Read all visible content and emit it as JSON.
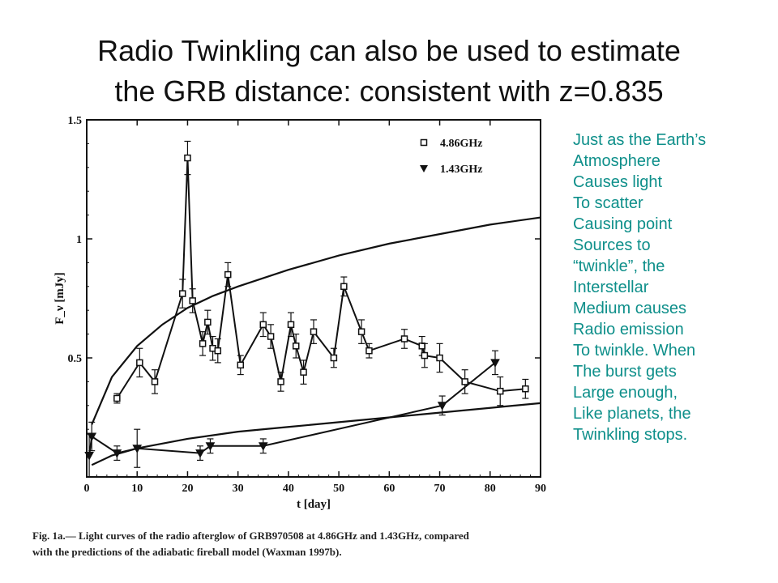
{
  "slide": {
    "title_line1": "Radio Twinkling can also be used to estimate",
    "title_line2": "the GRB distance:  consistent with z=0.835",
    "sidebar_lines": [
      "Just as the Earth’s",
      "Atmosphere",
      "Causes light",
      "To scatter",
      "Causing point",
      "Sources to",
      "“twinkle”, the",
      "Interstellar",
      "Medium causes",
      "Radio emission",
      "To twinkle.  When",
      "The burst gets",
      "Large enough,",
      "Like planets, the",
      "Twinkling stops."
    ],
    "caption_line1": "Fig. 1a.— Light curves of the radio afterglow of GRB970508 at 4.86GHz and 1.43GHz, compared",
    "caption_line2": "with the predictions of the adiabatic fireball model (Waxman 1997b).",
    "colors": {
      "title": "#111111",
      "sidebar": "#0e8f8a",
      "plot": "#111111"
    }
  },
  "chart_data": {
    "type": "line",
    "xlabel": "t [day]",
    "ylabel": "F_ν [mJy]",
    "xlim": [
      0,
      90
    ],
    "ylim": [
      0,
      1.5
    ],
    "x_ticks": [
      0,
      10,
      20,
      30,
      40,
      50,
      60,
      70,
      80,
      90
    ],
    "y_ticks": [
      0.5,
      1,
      1.5
    ],
    "y_tick_labels": [
      "0.5",
      "1",
      "1.5"
    ],
    "legend_position": "top-right",
    "series": [
      {
        "name": "4.86GHz",
        "marker": "square",
        "x": [
          6,
          10.5,
          13.5,
          19,
          20,
          21,
          23,
          24,
          25,
          26,
          28,
          30.5,
          35,
          36.5,
          38.5,
          40.5,
          41.5,
          43,
          45,
          49,
          51,
          54.5,
          56,
          63,
          66.5,
          67,
          70,
          75,
          82,
          87
        ],
        "y": [
          0.33,
          0.48,
          0.4,
          0.77,
          1.34,
          0.74,
          0.56,
          0.65,
          0.54,
          0.53,
          0.85,
          0.47,
          0.64,
          0.59,
          0.4,
          0.64,
          0.55,
          0.44,
          0.61,
          0.5,
          0.8,
          0.61,
          0.53,
          0.58,
          0.55,
          0.51,
          0.5,
          0.4,
          0.36,
          0.37
        ],
        "yerr": [
          0.02,
          0.06,
          0.05,
          0.06,
          0.07,
          0.05,
          0.05,
          0.05,
          0.05,
          0.05,
          0.05,
          0.04,
          0.05,
          0.05,
          0.04,
          0.05,
          0.05,
          0.05,
          0.05,
          0.04,
          0.04,
          0.05,
          0.03,
          0.04,
          0.04,
          0.05,
          0.06,
          0.05,
          0.06,
          0.04
        ]
      },
      {
        "name": "1.43GHz",
        "marker": "triangle-down",
        "x": [
          0.5,
          1,
          6,
          10,
          22.5,
          24.5,
          35,
          70.5,
          81
        ],
        "y": [
          0.09,
          0.17,
          0.1,
          0.12,
          0.1,
          0.13,
          0.13,
          0.3,
          0.48
        ],
        "yerr": [
          0.09,
          0.06,
          0.03,
          0.08,
          0.03,
          0.03,
          0.03,
          0.04,
          0.05
        ]
      },
      {
        "name": "",
        "role": "model 4.86GHz",
        "style": "smooth",
        "x": [
          1,
          5,
          10,
          15,
          20,
          25,
          30,
          40,
          50,
          60,
          70,
          80,
          90
        ],
        "y": [
          0.22,
          0.42,
          0.55,
          0.64,
          0.71,
          0.76,
          0.8,
          0.87,
          0.93,
          0.98,
          1.02,
          1.06,
          1.09
        ]
      },
      {
        "name": "",
        "role": "model 1.43GHz",
        "style": "smooth",
        "x": [
          1,
          5,
          10,
          20,
          30,
          40,
          50,
          60,
          70,
          80,
          90
        ],
        "y": [
          0.05,
          0.09,
          0.12,
          0.16,
          0.19,
          0.21,
          0.23,
          0.25,
          0.27,
          0.29,
          0.31
        ]
      }
    ]
  }
}
